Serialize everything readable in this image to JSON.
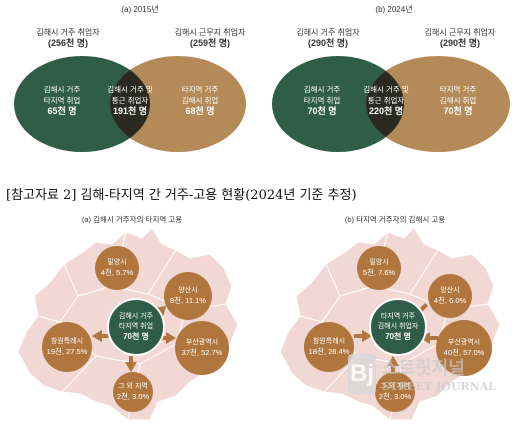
{
  "venn_2015": {
    "title": "(a) 2015년",
    "left_caption": "김해시 거주 취업자",
    "left_total": "(256천 명)",
    "right_caption": "김해시 근무지 취업자",
    "right_total": "(259천 명)",
    "left_line1": "김해시 거주",
    "left_line2": "타지역 취업",
    "left_value": "65천 명",
    "mid_line1": "김해시 거주 및",
    "mid_line2": "통근 취업자",
    "mid_value": "191천 명",
    "right_line1": "타지역 거주",
    "right_line2": "김해시 취업",
    "right_value": "68천 명"
  },
  "venn_2024": {
    "title": "(b) 2024년",
    "left_caption": "김해시 거주 취업자",
    "left_total": "(290천 명)",
    "right_caption": "김해시 근무지 취업자",
    "right_total": "(290천 명)",
    "left_line1": "김해시 거주",
    "left_line2": "타지역 취업",
    "left_value": "70천 명",
    "mid_line1": "김해시 거주 및",
    "mid_line2": "통근 취업자",
    "mid_value": "220천 명",
    "right_line1": "타지역 거주",
    "right_line2": "김해시 취업",
    "right_value": "70천 명"
  },
  "section_title": "[참고자료 2] 김해-타지역 간 거주-고용 현황(2024년 기준 추정)",
  "map_a": {
    "title": "(a) 김해시 거주자의 타지역 고용",
    "center_line1": "김해시 거주",
    "center_line2": "타지역 취업",
    "center_value": "70천 명",
    "miryang_name": "밀양시",
    "miryang_value": "4천, 5.7%",
    "yangsan_name": "양산시",
    "yangsan_value": "8천, 11.1%",
    "changwon_name": "창원특례시",
    "changwon_value": "19천, 27.5%",
    "busan_name": "부산광역시",
    "busan_value": "37천, 52.7%",
    "other_name": "그 외 지역",
    "other_value": "2천, 3.0%"
  },
  "map_b": {
    "title": "(b) 타지역 거주자의 김해시 고용",
    "center_line1": "타지역 거주",
    "center_line2": "김해시 취업자",
    "center_value": "70천 명",
    "miryang_name": "밀양시",
    "miryang_value": "5천, 7.6%",
    "yangsan_name": "양산시",
    "yangsan_value": "4천, 6.0%",
    "changwon_name": "창원특례시",
    "changwon_value": "18천, 26.4%",
    "busan_name": "부산광역시",
    "busan_value": "40천, 57.0%",
    "other_name": "그 외 지역",
    "other_value": "2천, 3.0%"
  },
  "watermark": {
    "korean": "스트릿저널",
    "english": "STREET JOURNAL"
  },
  "colors": {
    "green": "#2f5d48",
    "dark_overlap": "#2a2a20",
    "tan": "#b38a58",
    "map_fill": "#f1d8d5",
    "bubble": "#b0763e"
  }
}
